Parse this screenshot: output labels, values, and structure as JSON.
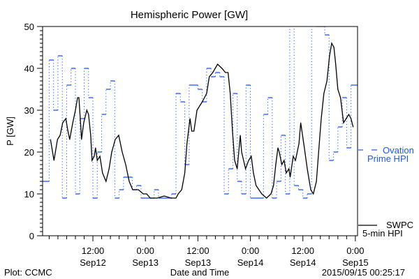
{
  "chart_data": {
    "type": "line",
    "title": "Hemispheric Power [GW]",
    "xlabel": "Date and Time",
    "ylabel": "P [GW]",
    "x_units": "hours since 2015-09-12 00:00",
    "xlim": [
      0.5,
      72.5
    ],
    "ylim": [
      0,
      50
    ],
    "yticks": [
      {
        "value": 0,
        "label": "0"
      },
      {
        "value": 10,
        "label": "10"
      },
      {
        "value": 20,
        "label": "20"
      },
      {
        "value": 30,
        "label": "30"
      },
      {
        "value": 40,
        "label": "40"
      },
      {
        "value": 50,
        "label": "50"
      }
    ],
    "xticks": [
      {
        "value": 12,
        "time": "12:00",
        "date": "Sep12"
      },
      {
        "value": 24,
        "time": "0:00",
        "date": "Sep13"
      },
      {
        "value": 36,
        "time": "12:00",
        "date": "Sep13"
      },
      {
        "value": 48,
        "time": "0:00",
        "date": "Sep14"
      },
      {
        "value": 60,
        "time": "12:00",
        "date": "Sep14"
      },
      {
        "value": 72,
        "time": "0:00",
        "date": "Sep15"
      }
    ],
    "series": [
      {
        "name": "Ovation Prime HPI",
        "legend_lines": [
          "Ovation",
          "Prime HPI"
        ],
        "style": "step",
        "color": "#1a56ff",
        "step_start_hours": [
          0.5,
          2,
          3,
          4,
          5,
          6,
          7,
          8,
          9,
          10,
          11,
          12,
          13,
          14,
          15,
          16,
          17,
          18,
          19,
          20,
          21,
          22,
          23,
          24,
          25,
          26,
          27,
          28,
          29,
          30,
          31,
          32,
          33,
          34,
          35,
          36,
          37,
          38,
          39,
          40,
          41,
          42,
          43,
          44,
          45,
          46,
          47,
          48,
          49,
          50,
          51,
          52,
          53,
          54,
          55,
          56,
          57,
          58,
          59,
          60,
          61,
          62,
          63,
          64,
          65,
          66,
          67,
          68,
          69,
          70,
          71
        ],
        "values": [
          13,
          42,
          30,
          43,
          9,
          36,
          40,
          10,
          28,
          40,
          33,
          9,
          20,
          29,
          35,
          37,
          9,
          11,
          14,
          14,
          11,
          12,
          9,
          9,
          9,
          11,
          9,
          9,
          9,
          10,
          34,
          32,
          17,
          36,
          36,
          35,
          32,
          40,
          38,
          39,
          38,
          10,
          16,
          34,
          13,
          10,
          36,
          9,
          9,
          9,
          29,
          33,
          9,
          13,
          24,
          10,
          60,
          12,
          11,
          9,
          10,
          60,
          50,
          50,
          48,
          18,
          20,
          26,
          33,
          21,
          36
        ]
      },
      {
        "name": "SWPC 5-min HPI",
        "legend_lines": [
          "SWPC",
          "5-min HPI"
        ],
        "style": "line",
        "color": "#000000",
        "x": [
          2.3,
          3.1,
          3.9,
          4.5,
          5.1,
          5.8,
          6.3,
          6.7,
          7.4,
          8.0,
          8.5,
          8.8,
          9.3,
          9.4,
          9.9,
          10.6,
          11.0,
          11.5,
          11.8,
          12.3,
          12.6,
          13.0,
          13.6,
          14.2,
          15.0,
          15.7,
          16.3,
          17.1,
          17.9,
          18.7,
          19.5,
          20.3,
          21.1,
          22.4,
          23.5,
          24.3,
          25.1,
          26.7,
          28.3,
          29.9,
          31.0,
          31.5,
          32.3,
          33.0,
          33.5,
          34.2,
          34.6,
          35.1,
          35.8,
          37.0,
          38.0,
          38.6,
          39.4,
          40.5,
          41.5,
          42.3,
          42.9,
          43.4,
          43.9,
          44.4,
          45.0,
          45.7,
          46.0,
          46.9,
          47.6,
          48.2,
          48.7,
          49.3,
          50.6,
          51.7,
          52.7,
          53.3,
          53.8,
          54.3,
          54.6,
          55.2,
          55.7,
          56.2,
          56.8,
          57.1,
          57.8,
          58.3,
          59.1,
          59.5,
          60.2,
          61.0,
          61.8,
          62.4,
          63.1,
          63.9,
          64.2,
          64.8,
          65.5,
          66.1,
          66.6,
          67.1,
          67.5,
          68.0,
          68.6,
          69.3,
          69.9,
          70.5,
          71.0,
          71.5
        ],
        "y": [
          23,
          18,
          23,
          24,
          27,
          28,
          25,
          23,
          27,
          30,
          33,
          33,
          25,
          23,
          27,
          30,
          29,
          24,
          18,
          19,
          21,
          18,
          19,
          15,
          13,
          16,
          20,
          23,
          24,
          20,
          17,
          13,
          11,
          11,
          10,
          10,
          9,
          9,
          9.5,
          9,
          9,
          10,
          11,
          15,
          22,
          28,
          25,
          25,
          30,
          32,
          34,
          38,
          39,
          41,
          40,
          39,
          39,
          34,
          25,
          18,
          16,
          24,
          20,
          16,
          18,
          19,
          15,
          12,
          10,
          9,
          10,
          12,
          17,
          21,
          20,
          17,
          18,
          15,
          16,
          14,
          19,
          18,
          22,
          27,
          22,
          16,
          11,
          10,
          13,
          24,
          28,
          34,
          37,
          43,
          46,
          45,
          41,
          35,
          33,
          27,
          28,
          29,
          28,
          26
        ]
      }
    ],
    "grid": false,
    "legend": "right"
  },
  "footer": {
    "left": "Plot: CCMC",
    "timestamp": "2015/09/15 00:25:17"
  }
}
